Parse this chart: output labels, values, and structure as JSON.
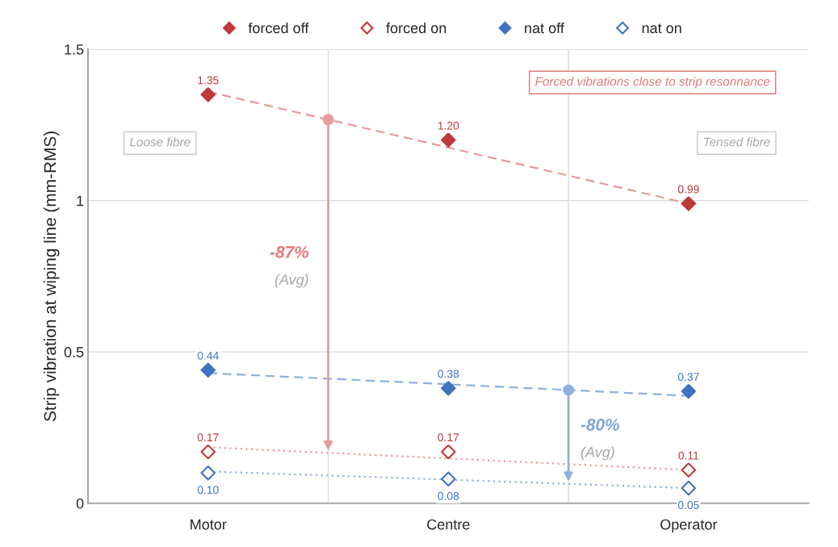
{
  "chart_data": {
    "type": "scatter",
    "ylabel": "Strip vibration at wiping line (mm-RMS)",
    "categories": [
      "Motor",
      "Centre",
      "Operator"
    ],
    "series": [
      {
        "name": "forced off",
        "color": "#c0393b",
        "marker": "diamond",
        "values": [
          1.35,
          1.2,
          0.99
        ],
        "value_labels": [
          "1.35",
          "1.20",
          "0.99"
        ]
      },
      {
        "name": "forced on",
        "color": "#c0393b",
        "marker": "diamond",
        "values": [
          0.17,
          0.17,
          0.11
        ],
        "value_labels": [
          "0.17",
          "0.17",
          "0.11"
        ]
      },
      {
        "name": "nat off",
        "color": "#3f74c0",
        "marker": "diamond",
        "values": [
          0.44,
          0.38,
          0.37
        ],
        "value_labels": [
          "0.44",
          "0.38",
          "0.37"
        ]
      },
      {
        "name": "nat on",
        "color": "#3f74c0",
        "marker": "diamond",
        "values": [
          0.1,
          0.08,
          0.05
        ],
        "value_labels": [
          "0.10",
          "0.08",
          "0.05"
        ]
      },
      {
        "type": "line",
        "color": "#e59c9a",
        "line_style": "dashed",
        "values": [
          1.36,
          1.175,
          0.99
        ]
      },
      {
        "type": "line",
        "color": "#e59c9a",
        "line_style": "dotted",
        "values": [
          0.185,
          0.148,
          0.11
        ]
      },
      {
        "type": "line",
        "color": "#8fb0de",
        "line_style": "dashed",
        "values": [
          0.43,
          0.393,
          0.355
        ]
      },
      {
        "type": "line",
        "color": "#8fb0de",
        "line_style": "dotted",
        "values": [
          0.105,
          0.078,
          0.05
        ]
      }
    ],
    "ylim": [
      0,
      1.5
    ],
    "yticks": [
      0,
      0.5,
      1,
      1.5
    ],
    "grid": true,
    "legend": "top",
    "annotations": [
      "-87%",
      "(Avg)",
      "-80%",
      "(Avg)",
      "Loose fibre",
      "Tensed fibre",
      "Forced vibrations close to strip resonnance"
    ]
  }
}
